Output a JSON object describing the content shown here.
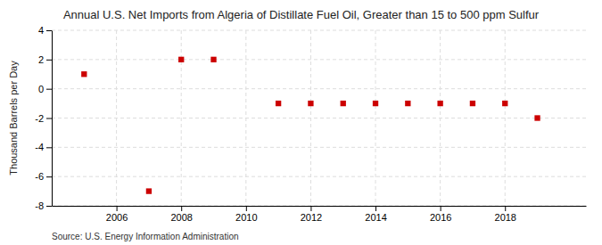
{
  "chart_data": {
    "type": "scatter",
    "title": "Annual U.S. Net Imports from Algeria of Distillate Fuel Oil, Greater than 15 to 500 ppm Sulfur",
    "ylabel": "Thousand Barrels per Day",
    "annotations": [
      "Source: U.S. Energy Information Administration"
    ],
    "x": [
      2005,
      2007,
      2008,
      2009,
      2011,
      2012,
      2013,
      2014,
      2015,
      2016,
      2017,
      2018,
      2019
    ],
    "values": [
      1,
      -7,
      2,
      2,
      -1,
      -1,
      -1,
      -1,
      -1,
      -1,
      -1,
      -1,
      -2
    ],
    "xlim": [
      2004.0,
      2020.5
    ],
    "ylim": [
      -8,
      4
    ],
    "xticks": [
      2006,
      2008,
      2010,
      2012,
      2014,
      2016,
      2018
    ],
    "yticks": [
      -8,
      -6,
      -4,
      -2,
      0,
      2,
      4
    ],
    "color": "#cc0000",
    "marker": "square",
    "grid": true
  }
}
